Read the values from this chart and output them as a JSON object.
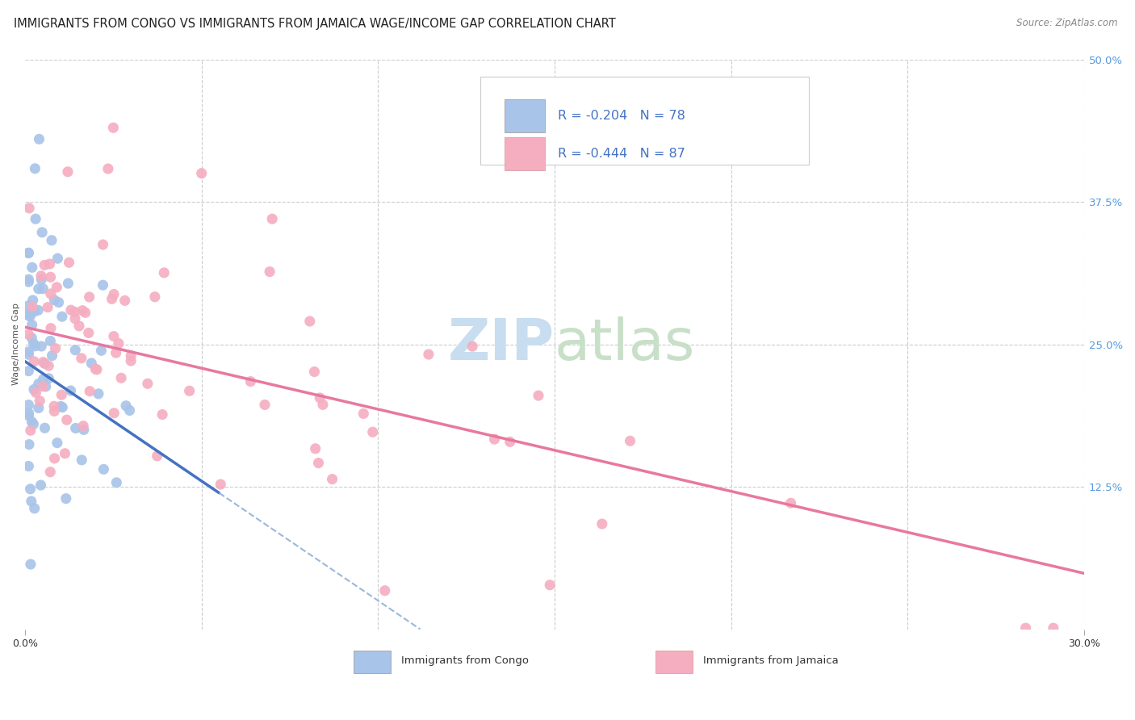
{
  "title": "IMMIGRANTS FROM CONGO VS IMMIGRANTS FROM JAMAICA WAGE/INCOME GAP CORRELATION CHART",
  "source": "Source: ZipAtlas.com",
  "ylabel": "Wage/Income Gap",
  "xlim": [
    0.0,
    0.3
  ],
  "ylim": [
    0.0,
    0.5
  ],
  "congo_color": "#a8c4e8",
  "jamaica_color": "#f5adc0",
  "congo_line_color": "#4472c4",
  "jamaica_line_color": "#e878a0",
  "dashed_line_color": "#9ab8d8",
  "legend_text_color": "#4472c4",
  "grid_color": "#cccccc",
  "background_color": "#ffffff",
  "title_fontsize": 10.5,
  "source_fontsize": 8.5,
  "axis_label_fontsize": 8,
  "legend_fontsize": 11,
  "watermark_zip_color": "#c8ddf0",
  "watermark_atlas_color": "#c8dfc8",
  "right_tick_color": "#5599dd"
}
